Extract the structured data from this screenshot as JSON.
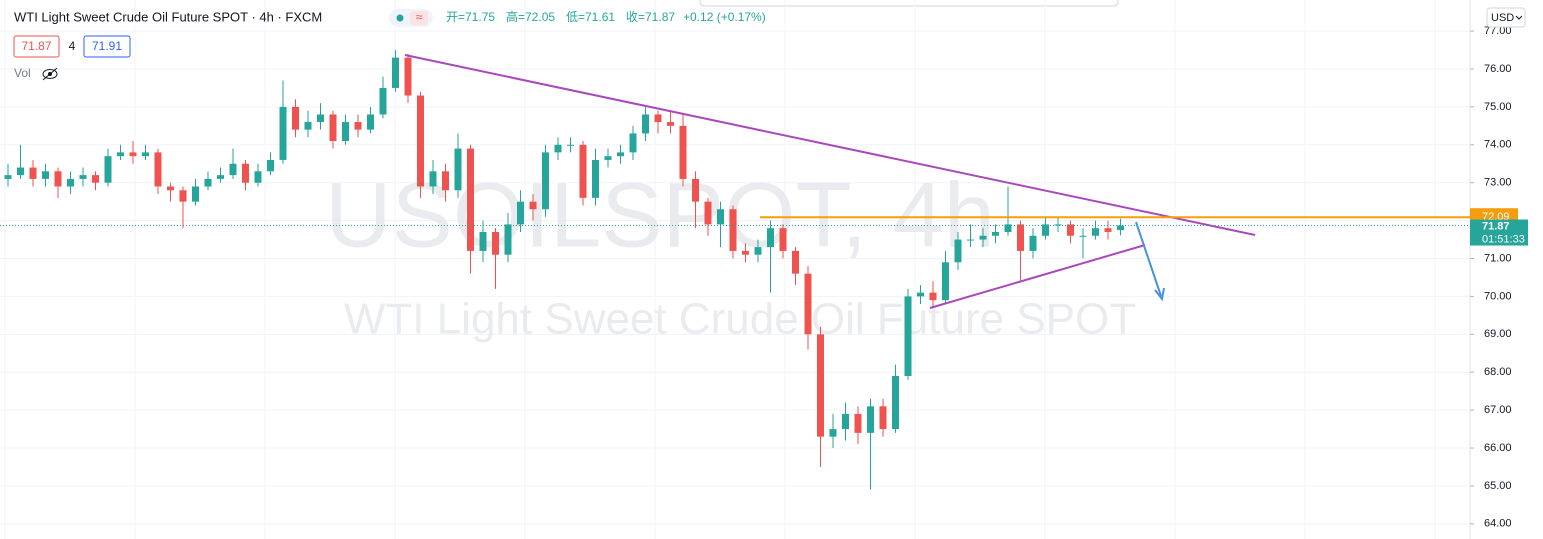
{
  "chart_data": {
    "type": "candlestick",
    "title": "WTI Light Sweet Crude Oil Future SPOT · 4h · FXCM",
    "legend_values": [
      "开=71.75",
      "高=72.05",
      "低=71.61",
      "收=71.87",
      "+0.12 (+0.17%)"
    ],
    "bid": "71.87",
    "spread": "4",
    "ask": "71.91",
    "volume_label": "Vol",
    "currency": "USD",
    "watermark": [
      "USOILSPOT, 4h",
      "WTI Light Sweet Crude Oil Future SPOT"
    ],
    "up_color": "#26a69a",
    "down_color": "#ef5350",
    "level": {
      "value": 72.09,
      "color": "#f59d0d"
    },
    "last_price": {
      "value": 71.87,
      "countdown": "01:51:33",
      "color": "#26a69a"
    },
    "ylim": [
      63.6,
      77.82
    ],
    "yticks": [
      {
        "value": 64,
        "label": "64.00"
      },
      {
        "value": 65,
        "label": "65.00"
      },
      {
        "value": 66,
        "label": "66.00"
      },
      {
        "value": 67,
        "label": "67.00"
      },
      {
        "value": 68,
        "label": "68.00"
      },
      {
        "value": 69,
        "label": "69.00"
      },
      {
        "value": 70,
        "label": "70.00"
      },
      {
        "value": 71,
        "label": "71.00"
      },
      {
        "value": 72,
        "label": "72.00"
      },
      {
        "value": 73,
        "label": "73.00"
      },
      {
        "value": 74,
        "label": "74.00"
      },
      {
        "value": 75,
        "label": "75.00"
      },
      {
        "value": 76,
        "label": "76.00"
      },
      {
        "value": 77,
        "label": "77.00"
      }
    ],
    "open": [
      73.1,
      73.2,
      73.4,
      73.1,
      73.3,
      72.9,
      73.1,
      73.2,
      73.0,
      73.7,
      73.8,
      73.7,
      73.8,
      72.9,
      72.8,
      72.5,
      72.9,
      73.1,
      73.2,
      73.5,
      73.0,
      73.3,
      73.6,
      75.0,
      74.4,
      74.6,
      74.8,
      74.1,
      74.6,
      74.4,
      74.8,
      75.5,
      76.3,
      75.3,
      72.9,
      73.3,
      72.8,
      73.9,
      71.2,
      71.7,
      71.1,
      71.9,
      72.5,
      72.3,
      73.8,
      74.0,
      74.0,
      72.6,
      73.6,
      73.7,
      73.8,
      74.3,
      74.8,
      74.6,
      74.5,
      73.1,
      72.5,
      71.9,
      72.3,
      71.2,
      71.1,
      71.3,
      71.8,
      71.2,
      70.6,
      69.0,
      66.3,
      66.5,
      66.9,
      66.4,
      67.1,
      66.5,
      67.9,
      70.0,
      70.1,
      69.9,
      70.9,
      71.5,
      71.5,
      71.6,
      71.7,
      71.9,
      71.2,
      71.6,
      71.9,
      71.9,
      71.6,
      71.6,
      71.8,
      71.75
    ],
    "high": [
      73.5,
      74.0,
      73.6,
      73.5,
      73.4,
      73.3,
      73.4,
      73.3,
      73.9,
      74.0,
      74.1,
      74.0,
      73.9,
      73.0,
      72.9,
      73.1,
      73.3,
      73.4,
      73.9,
      73.6,
      73.5,
      73.8,
      75.7,
      75.2,
      74.9,
      75.1,
      74.9,
      74.8,
      74.8,
      75.0,
      75.8,
      76.5,
      76.4,
      75.4,
      73.6,
      73.5,
      74.3,
      74.0,
      72.0,
      71.8,
      72.2,
      72.8,
      72.7,
      74.0,
      74.2,
      74.2,
      74.1,
      73.9,
      73.9,
      74.0,
      74.5,
      75.0,
      74.9,
      74.9,
      74.8,
      73.3,
      72.6,
      72.5,
      72.4,
      71.4,
      71.5,
      72.0,
      71.9,
      71.3,
      70.8,
      69.2,
      66.9,
      67.2,
      67.1,
      67.3,
      67.3,
      68.2,
      70.2,
      70.3,
      70.4,
      71.2,
      71.7,
      71.9,
      71.8,
      71.9,
      72.9,
      72.0,
      71.8,
      72.1,
      72.1,
      72.0,
      71.8,
      72.0,
      72.0,
      72.05
    ],
    "low": [
      72.9,
      73.1,
      72.9,
      72.9,
      72.6,
      72.7,
      72.9,
      72.8,
      72.9,
      73.6,
      73.5,
      73.6,
      72.7,
      72.5,
      71.8,
      72.4,
      72.8,
      73.0,
      73.1,
      72.8,
      72.9,
      73.2,
      73.5,
      74.2,
      74.2,
      74.4,
      73.9,
      74.0,
      74.2,
      74.3,
      74.7,
      75.4,
      75.1,
      72.6,
      72.7,
      72.5,
      72.6,
      70.6,
      70.9,
      70.2,
      70.9,
      71.7,
      72.0,
      72.1,
      73.6,
      73.8,
      72.4,
      72.4,
      73.4,
      73.5,
      73.6,
      74.1,
      74.3,
      74.3,
      72.9,
      71.8,
      71.6,
      71.3,
      71.0,
      70.9,
      70.9,
      70.1,
      71.0,
      70.3,
      68.6,
      65.5,
      66.0,
      66.2,
      66.1,
      64.9,
      66.3,
      66.4,
      67.8,
      69.8,
      69.7,
      69.8,
      70.7,
      71.3,
      71.3,
      71.4,
      71.6,
      70.4,
      71.0,
      71.5,
      71.7,
      71.4,
      71.0,
      71.5,
      71.5,
      71.61
    ],
    "close": [
      73.2,
      73.4,
      73.1,
      73.3,
      72.9,
      73.1,
      73.2,
      73.0,
      73.7,
      73.8,
      73.7,
      73.8,
      72.9,
      72.8,
      72.5,
      72.9,
      73.1,
      73.2,
      73.5,
      73.0,
      73.3,
      73.6,
      75.0,
      74.4,
      74.6,
      74.8,
      74.1,
      74.6,
      74.4,
      74.8,
      75.5,
      76.3,
      75.3,
      72.9,
      73.3,
      72.8,
      73.9,
      71.2,
      71.7,
      71.1,
      71.9,
      72.5,
      72.3,
      73.8,
      74.0,
      74.0,
      72.6,
      73.6,
      73.7,
      73.8,
      74.3,
      74.8,
      74.6,
      74.5,
      73.1,
      72.5,
      71.9,
      72.3,
      71.2,
      71.1,
      71.3,
      71.8,
      71.2,
      70.6,
      69.0,
      66.3,
      66.5,
      66.9,
      66.4,
      67.1,
      66.5,
      67.9,
      70.0,
      70.1,
      69.9,
      70.9,
      71.5,
      71.5,
      71.6,
      71.7,
      71.9,
      71.2,
      71.6,
      71.9,
      71.9,
      71.6,
      71.6,
      71.8,
      71.7,
      71.87
    ]
  }
}
